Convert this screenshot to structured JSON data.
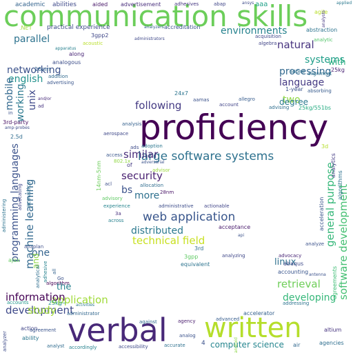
{
  "words": [
    {
      "t": "communication skills",
      "c": "#6cce5a"
    },
    {
      "t": "proficiency",
      "c": "#440154"
    },
    {
      "t": "verbal",
      "c": "#482878"
    },
    {
      "t": "written",
      "c": "#b5de2b"
    },
    {
      "t": "large software systems",
      "c": "#2d718e"
    },
    {
      "t": "web application",
      "c": "#39568c"
    },
    {
      "t": "technical field",
      "c": "#c8e020"
    },
    {
      "t": "distributed",
      "c": "#2a788e"
    },
    {
      "t": "programming languages",
      "c": "#3b528b"
    },
    {
      "t": "machine learning",
      "c": "#31688e"
    },
    {
      "t": "software development",
      "c": "#43bf71"
    },
    {
      "t": "general purpose",
      "c": "#35b779"
    },
    {
      "t": "application",
      "c": "#a0da39"
    },
    {
      "t": "development",
      "c": "#3e4989"
    },
    {
      "t": "information",
      "c": "#440154"
    },
    {
      "t": "developing",
      "c": "#35b779"
    },
    {
      "t": "retrieval",
      "c": "#6ece58"
    },
    {
      "t": "computer science",
      "c": "#25858e"
    },
    {
      "t": "networking",
      "c": "#3b528b"
    },
    {
      "t": "environments",
      "c": "#26828e"
    },
    {
      "t": "processing",
      "c": "#31688e"
    },
    {
      "t": "language",
      "c": "#443983"
    },
    {
      "t": "natural",
      "c": "#46327e"
    },
    {
      "t": "systems",
      "c": "#1f9e89"
    },
    {
      "t": "parallel",
      "c": "#2c728e"
    },
    {
      "t": "english",
      "c": "#21918c"
    },
    {
      "t": "following",
      "c": "#443a83"
    },
    {
      "t": "similar",
      "c": "#472c7a"
    },
    {
      "t": "security",
      "c": "#481f70"
    },
    {
      "t": "working",
      "c": "#2a788e"
    },
    {
      "t": "mobile",
      "c": "#31688e"
    },
    {
      "t": "unix",
      "c": "#3e4989"
    },
    {
      "t": "linux",
      "c": "#2d708e"
    },
    {
      "t": "study",
      "c": "#a2da37"
    },
    {
      "t": "two",
      "c": "#8fd744"
    },
    {
      "t": "more",
      "c": "#2d708e"
    },
    {
      "t": "one",
      "c": "#33638d"
    },
    {
      "t": "bs",
      "c": "#3b528b"
    },
    {
      "t": "the",
      "c": "#26828e"
    },
    {
      "t": "with",
      "c": "#29af7f"
    },
    {
      "t": "and",
      "c": "#8fd744"
    },
    {
      "t": "degree",
      "c": "#29798e"
    },
    {
      "t": "academic",
      "c": "#33638d"
    },
    {
      "t": "abilities",
      "c": "#3e4989"
    },
    {
      "t": "aided",
      "c": "#481769"
    },
    {
      "t": "advertisement",
      "c": "#472d7b"
    },
    {
      "t": "adhesives",
      "c": "#453781"
    },
    {
      "t": "abap",
      "c": "#404688"
    },
    {
      "t": "aaa",
      "c": "#1fa188"
    },
    {
      "t": "practical experience",
      "c": "#3e4a89"
    },
    {
      "t": "accreditation",
      "c": "#3a548c"
    },
    {
      "t": "abstraction",
      "c": "#2c738e"
    },
    {
      "t": "acquisition",
      "c": "#3f4889"
    },
    {
      "t": "analytic",
      "c": "#52c569"
    },
    {
      "t": "algebra",
      "c": "#414487"
    },
    {
      "t": "3gpp2",
      "c": "#3f4788"
    },
    {
      "t": ".NET",
      "c": "#9dd93b"
    },
    {
      "t": "acoustic",
      "c": "#b8de29"
    },
    {
      "t": "along",
      "c": "#482576"
    },
    {
      "t": "analogous",
      "c": "#3d4e8a"
    },
    {
      "t": "16nm",
      "c": "#32658e"
    },
    {
      "t": "addition",
      "c": "#30698e"
    },
    {
      "t": "advertising",
      "c": "#39558c"
    },
    {
      "t": "and/or",
      "c": "#472a7a"
    },
    {
      "t": "ad",
      "c": "#463480"
    },
    {
      "t": "in",
      "c": "#3b518b"
    },
    {
      "t": "3rd-party",
      "c": "#471063"
    },
    {
      "t": "amp-probes",
      "c": "#3e4c8a"
    },
    {
      "t": "2.5d",
      "c": "#2f6c8e"
    },
    {
      "t": "24x7",
      "c": "#2b748e"
    },
    {
      "t": "aamas",
      "c": "#3b528b"
    },
    {
      "t": "account",
      "c": "#404387"
    },
    {
      "t": "allegro",
      "c": "#365c8d"
    },
    {
      "t": "advising",
      "c": "#2e6e8e"
    },
    {
      "t": "absorbing",
      "c": "#375b8d"
    },
    {
      "t": "added",
      "c": "#2e6f8e"
    },
    {
      "t": "alignment",
      "c": "#2c728e"
    },
    {
      "t": "25kg",
      "c": "#482173"
    },
    {
      "t": "1-year",
      "c": "#3b528b"
    },
    {
      "t": "25kg/551bs",
      "c": "#25ab82"
    },
    {
      "t": "3d",
      "c": "#b5de2b"
    },
    {
      "t": "aerospace",
      "c": "#3f4889"
    },
    {
      "t": "analysis",
      "c": "#34608d"
    },
    {
      "t": "adoption",
      "c": "#2a768e"
    },
    {
      "t": "ads",
      "c": "#3e4c8a"
    },
    {
      "t": "access",
      "c": "#39568c"
    },
    {
      "t": "14nm-5nm",
      "c": "#6ccd5a"
    },
    {
      "t": "acl",
      "c": "#3d4e8a"
    },
    {
      "t": "802.1x",
      "c": "#90d743"
    },
    {
      "t": "of",
      "c": "#443983"
    },
    {
      "t": "advisor",
      "c": "#9bd93c"
    },
    {
      "t": "allocation",
      "c": "#2f6c8e"
    },
    {
      "t": "28nm",
      "c": "#481467"
    },
    {
      "t": "advisory",
      "c": "#5ec962"
    },
    {
      "t": "experience",
      "c": "#25848e"
    },
    {
      "t": "administrative",
      "c": "#3d4d8a"
    },
    {
      "t": "actionable",
      "c": "#404588"
    },
    {
      "t": "3a",
      "c": "#472f7d"
    },
    {
      "t": "across",
      "c": "#26818e"
    },
    {
      "t": "acceptance",
      "c": "#481a6c"
    },
    {
      "t": "3rd",
      "c": "#2e6e8e"
    },
    {
      "t": "3gpp",
      "c": "#5ec962"
    },
    {
      "t": "equivalent",
      "c": "#2c738e"
    },
    {
      "t": "analyzing",
      "c": "#3f4788"
    },
    {
      "t": "acoustics",
      "c": "#2e6f8e"
    },
    {
      "t": "advocating",
      "c": "#3f4889"
    },
    {
      "t": "administering",
      "c": "#2c728e"
    },
    {
      "t": "anaplan",
      "c": "#3d4e8a"
    },
    {
      "t": "ajax",
      "c": "#63cb5f"
    },
    {
      "t": "analytical",
      "c": "#2e6e8e"
    },
    {
      "t": "adhesive",
      "c": "#26828e"
    },
    {
      "t": "all",
      "c": "#33628d"
    },
    {
      "t": "algorithm",
      "c": "#440154"
    },
    {
      "t": "Go",
      "c": "#3b528b"
    },
    {
      "t": "accounts",
      "c": "#1f958b"
    },
    {
      "t": "advocacy",
      "c": "#482576"
    },
    {
      "t": "abaqus",
      "c": "#3e4989"
    },
    {
      "t": "accounting",
      "c": "#39558c"
    },
    {
      "t": "analyze",
      "c": "#3b528b"
    },
    {
      "t": "acceleration",
      "c": "#3a538b"
    },
    {
      "t": "agreements",
      "c": "#3dbc74"
    },
    {
      "t": "addressing",
      "c": "#2c738e"
    },
    {
      "t": "accelerator",
      "c": "#34608d"
    },
    {
      "t": "advanced",
      "c": "#365d8d"
    },
    {
      "t": "agency",
      "c": "#481b6d"
    },
    {
      "t": "against",
      "c": "#2f6b8e"
    },
    {
      "t": "activities",
      "c": "#2a778e"
    },
    {
      "t": "administrator",
      "c": "#31678e"
    },
    {
      "t": "25kg~",
      "c": "#21918c"
    },
    {
      "t": "action",
      "c": "#404588"
    },
    {
      "t": "agreement",
      "c": "#3a548c"
    },
    {
      "t": "ability",
      "c": "#2a768e"
    },
    {
      "t": "analyst",
      "c": "#2f6b8e"
    },
    {
      "t": "accordingly",
      "c": "#26828e"
    },
    {
      "t": "accessibility",
      "c": "#3e4a89"
    },
    {
      "t": "accurate",
      "c": "#2d708e"
    },
    {
      "t": "analog",
      "c": "#3b528b"
    },
    {
      "t": "4",
      "c": "#3b528b"
    },
    {
      "t": "air",
      "c": "#31688e"
    },
    {
      "t": "agencies",
      "c": "#2e6e8e"
    },
    {
      "t": "altium",
      "c": "#46337f"
    },
    {
      "t": "analyzer",
      "c": "#3e4c8a"
    },
    {
      "t": "ansys",
      "c": "#3e4c8a"
    },
    {
      "t": "agile",
      "c": "#b8de29"
    },
    {
      "t": "android",
      "c": "#8bd646"
    },
    {
      "t": "analytics",
      "c": "#443b84"
    },
    {
      "t": "algorithms",
      "c": "#2d718e"
    },
    {
      "t": "administrators",
      "c": "#3f4889"
    },
    {
      "t": "apparatus",
      "c": "#27808e"
    },
    {
      "t": "analyzers",
      "c": "#34618d"
    },
    {
      "t": "adversarial",
      "c": "#3b528b"
    },
    {
      "t": "applied",
      "c": "#2a788e"
    },
    {
      "t": "antenna",
      "c": "#3b528b"
    },
    {
      "t": "analysts",
      "c": "#453882"
    },
    {
      "t": "api",
      "c": "#3b528b"
    }
  ]
}
